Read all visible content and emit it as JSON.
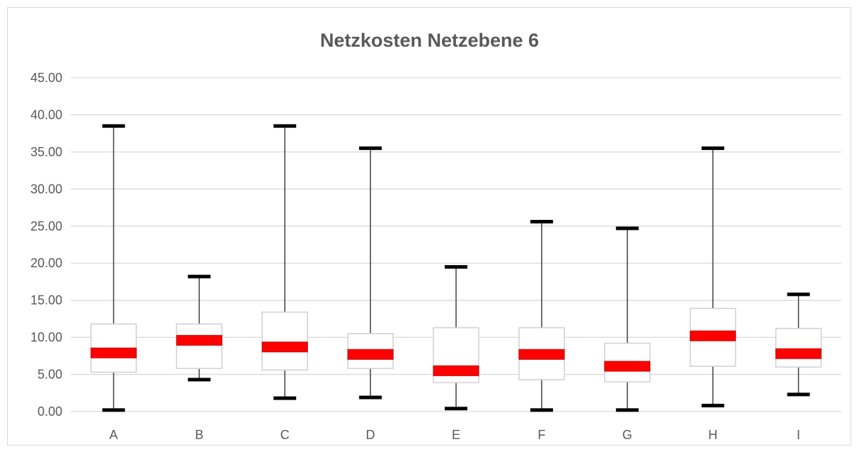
{
  "chart_data": {
    "type": "boxplot",
    "title": "Netzkosten Netzebene 6",
    "xlabel": "",
    "ylabel": "",
    "ylim": [
      0,
      45
    ],
    "y_tick_step": 5,
    "y_tick_labels": [
      "0.00",
      "5.00",
      "10.00",
      "15.00",
      "20.00",
      "25.00",
      "30.00",
      "35.00",
      "40.00",
      "45.00"
    ],
    "grid": true,
    "legend": "none",
    "categories": [
      "A",
      "B",
      "C",
      "D",
      "E",
      "F",
      "G",
      "H",
      "I"
    ],
    "series": [
      {
        "category": "A",
        "min": 0.2,
        "q1": 5.3,
        "median": 7.9,
        "q3": 11.8,
        "max": 38.5
      },
      {
        "category": "B",
        "min": 4.3,
        "q1": 5.8,
        "median": 9.6,
        "q3": 11.8,
        "max": 18.2
      },
      {
        "category": "C",
        "min": 1.8,
        "q1": 5.6,
        "median": 8.7,
        "q3": 13.4,
        "max": 38.5
      },
      {
        "category": "D",
        "min": 1.9,
        "q1": 5.8,
        "median": 7.7,
        "q3": 10.5,
        "max": 35.5
      },
      {
        "category": "E",
        "min": 0.4,
        "q1": 3.9,
        "median": 5.5,
        "q3": 11.3,
        "max": 19.5
      },
      {
        "category": "F",
        "min": 0.2,
        "q1": 4.3,
        "median": 7.7,
        "q3": 11.3,
        "max": 25.6
      },
      {
        "category": "G",
        "min": 0.2,
        "q1": 4.0,
        "median": 6.1,
        "q3": 9.2,
        "max": 24.7
      },
      {
        "category": "H",
        "min": 0.8,
        "q1": 6.1,
        "median": 10.2,
        "q3": 13.9,
        "max": 35.5
      },
      {
        "category": "I",
        "min": 2.3,
        "q1": 6.0,
        "median": 7.8,
        "q3": 11.2,
        "max": 15.8
      }
    ],
    "colors": {
      "median": "#ff0000",
      "median_border": "#c00000",
      "box_border": "#d0d0d0",
      "whisker": "#404040",
      "cap": "#000000",
      "grid": "#d9d9d9",
      "text": "#595959"
    }
  }
}
